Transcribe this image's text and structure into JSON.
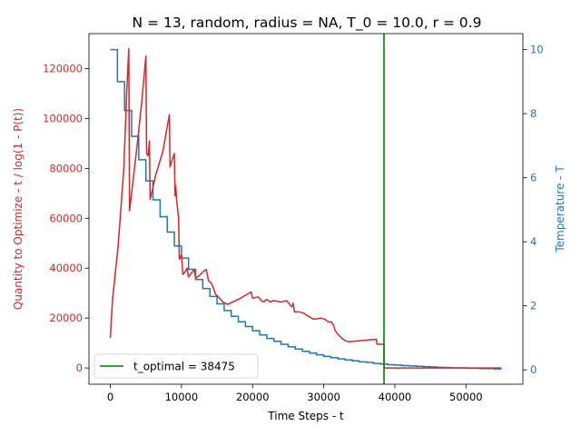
{
  "chart_data": {
    "type": "line",
    "title": "N = 13, random, radius = NA, T_0 = 10.0, r = 0.9",
    "xlabel": "Time Steps - t",
    "ylabel_left": "Quantity to Optimize - t / log(1 - P(t))",
    "ylabel_right": "Temperature - T",
    "xlim": [
      -3000,
      58000
    ],
    "ylim_left": [
      -6500,
      134000
    ],
    "ylim_right": [
      -0.45,
      10.5
    ],
    "x_ticks": [
      0,
      10000,
      20000,
      30000,
      40000,
      50000
    ],
    "y_ticks_left": [
      0,
      20000,
      40000,
      60000,
      80000,
      100000,
      120000
    ],
    "y_ticks_right": [
      0,
      2,
      4,
      6,
      8,
      10
    ],
    "colors": {
      "quantity": "#d62728",
      "temperature": "#1f77b4",
      "optimal": "#008000",
      "axis": "#000000"
    },
    "legend": {
      "placement": "lower-left",
      "label": "t_optimal = 38475"
    },
    "t_optimal": 38475,
    "series": [
      {
        "axis": "left",
        "color": "#d62728",
        "points": [
          [
            0,
            12000
          ],
          [
            300,
            27000
          ],
          [
            1100,
            49000
          ],
          [
            1900,
            80000
          ],
          [
            2300,
            110000
          ],
          [
            2600,
            128000
          ],
          [
            2700,
            63000
          ],
          [
            3200,
            75000
          ],
          [
            3800,
            90000
          ],
          [
            4400,
            106000
          ],
          [
            5000,
            125000
          ],
          [
            5100,
            86000
          ],
          [
            5300,
            85000
          ],
          [
            5500,
            91000
          ],
          [
            5600,
            67500
          ],
          [
            6400,
            77500
          ],
          [
            7400,
            87000
          ],
          [
            8300,
            101500
          ],
          [
            8400,
            80500
          ],
          [
            8700,
            83500
          ],
          [
            9000,
            86000
          ],
          [
            9100,
            69000
          ],
          [
            9200,
            73000
          ],
          [
            9300,
            68000
          ],
          [
            9500,
            62500
          ],
          [
            9600,
            60000
          ],
          [
            9700,
            43500
          ],
          [
            10000,
            45500
          ],
          [
            10200,
            37500
          ],
          [
            10500,
            38500
          ],
          [
            10800,
            40000
          ],
          [
            11000,
            36500
          ],
          [
            11400,
            38000
          ],
          [
            11800,
            39500
          ],
          [
            12000,
            36000
          ],
          [
            12500,
            37000
          ],
          [
            13000,
            38500
          ],
          [
            13500,
            39500
          ],
          [
            13800,
            35000
          ],
          [
            14200,
            34000
          ],
          [
            14500,
            32000
          ],
          [
            14800,
            29500
          ],
          [
            15200,
            28500
          ],
          [
            15800,
            26500
          ],
          [
            16500,
            25500
          ],
          [
            18000,
            27500
          ],
          [
            19800,
            30500
          ],
          [
            20000,
            28000
          ],
          [
            20800,
            28500
          ],
          [
            21200,
            27000
          ],
          [
            21600,
            26500
          ],
          [
            22000,
            27500
          ],
          [
            22500,
            26500
          ],
          [
            23000,
            27000
          ],
          [
            24000,
            26500
          ],
          [
            24800,
            27000
          ],
          [
            25200,
            25500
          ],
          [
            25500,
            24500
          ],
          [
            25700,
            26000
          ],
          [
            25900,
            22500
          ],
          [
            26500,
            22500
          ],
          [
            27200,
            22000
          ],
          [
            27700,
            21000
          ],
          [
            28000,
            20500
          ],
          [
            28600,
            19500
          ],
          [
            29600,
            20000
          ],
          [
            30200,
            19500
          ],
          [
            30600,
            18500
          ],
          [
            31100,
            18500
          ],
          [
            31400,
            17000
          ],
          [
            31600,
            15000
          ],
          [
            32000,
            13500
          ],
          [
            32500,
            12000
          ],
          [
            33000,
            11000
          ],
          [
            33500,
            10500
          ],
          [
            37400,
            11500
          ],
          [
            37500,
            9500
          ],
          [
            38475,
            9500
          ],
          [
            38480,
            0
          ],
          [
            55000,
            0
          ]
        ]
      },
      {
        "axis": "right",
        "color": "#1f77b4",
        "steps": [
          [
            0,
            10.0
          ],
          [
            1000,
            9.0
          ],
          [
            2000,
            8.1
          ],
          [
            3000,
            7.29
          ],
          [
            4000,
            6.56
          ],
          [
            5000,
            5.9
          ],
          [
            6000,
            5.31
          ],
          [
            7000,
            4.78
          ],
          [
            8000,
            4.3
          ],
          [
            9000,
            3.87
          ],
          [
            10000,
            3.49
          ],
          [
            11000,
            3.14
          ],
          [
            12000,
            2.82
          ],
          [
            13000,
            2.54
          ],
          [
            14000,
            2.29
          ],
          [
            15000,
            2.06
          ],
          [
            16000,
            1.85
          ],
          [
            17000,
            1.67
          ],
          [
            18000,
            1.5
          ],
          [
            19000,
            1.35
          ],
          [
            20000,
            1.22
          ],
          [
            21000,
            1.09
          ],
          [
            22000,
            0.98
          ],
          [
            23000,
            0.89
          ],
          [
            24000,
            0.8
          ],
          [
            25000,
            0.72
          ],
          [
            26000,
            0.65
          ],
          [
            27000,
            0.58
          ],
          [
            28000,
            0.52
          ],
          [
            29000,
            0.47
          ],
          [
            30000,
            0.42
          ],
          [
            31000,
            0.38
          ],
          [
            32000,
            0.34
          ],
          [
            33000,
            0.31
          ],
          [
            34000,
            0.28
          ],
          [
            35000,
            0.25
          ],
          [
            36000,
            0.23
          ],
          [
            37000,
            0.2
          ],
          [
            38000,
            0.18
          ],
          [
            39000,
            0.16
          ],
          [
            40000,
            0.15
          ],
          [
            41000,
            0.13
          ],
          [
            42000,
            0.12
          ],
          [
            43000,
            0.11
          ],
          [
            44000,
            0.1
          ],
          [
            45000,
            0.09
          ],
          [
            46000,
            0.08
          ],
          [
            47000,
            0.07
          ],
          [
            48000,
            0.06
          ],
          [
            49000,
            0.06
          ],
          [
            50000,
            0.05
          ],
          [
            51000,
            0.05
          ],
          [
            52000,
            0.04
          ],
          [
            53000,
            0.04
          ],
          [
            54000,
            0.03
          ],
          [
            55000,
            0.03
          ]
        ]
      }
    ]
  }
}
